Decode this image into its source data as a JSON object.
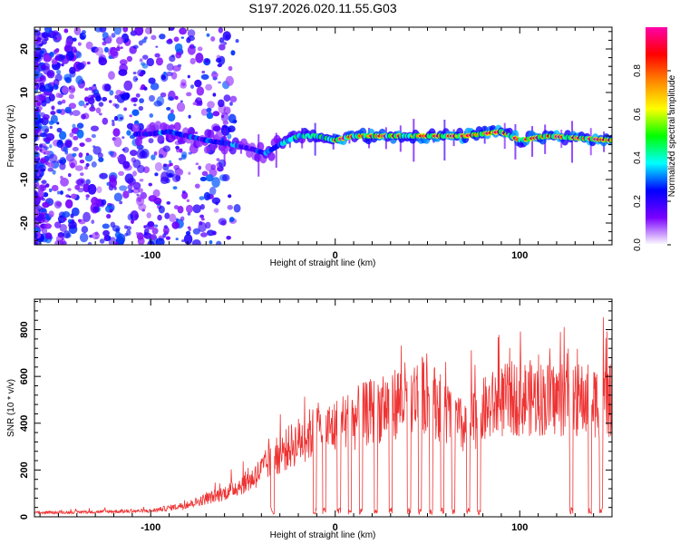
{
  "title": "S197.2026.020.11.55.G03",
  "chart_data": [
    {
      "type": "heatmap",
      "name": "spectrogram",
      "xlabel": "Height of straight line (km)",
      "ylabel": "Frequency (Hz)",
      "xlim": [
        -163,
        150
      ],
      "ylim": [
        -25,
        25
      ],
      "xticks": [
        -100,
        0,
        100
      ],
      "xtick_labels": [
        "-100",
        "0",
        "100"
      ],
      "yticks": [
        -20,
        -10,
        0,
        10,
        20
      ],
      "ytick_labels": [
        "-20",
        "-10",
        "0",
        "10",
        "20"
      ],
      "ridge_frequency_hz": [
        {
          "x": -163,
          "f": 0
        },
        {
          "x": -100,
          "f": 0.5
        },
        {
          "x": -90,
          "f": 1
        },
        {
          "x": -70,
          "f": -1
        },
        {
          "x": -55,
          "f": -2
        },
        {
          "x": -45,
          "f": -3
        },
        {
          "x": -38,
          "f": -4
        },
        {
          "x": -30,
          "f": -2
        },
        {
          "x": -20,
          "f": 0
        },
        {
          "x": -10,
          "f": 0
        },
        {
          "x": 0,
          "f": -1
        },
        {
          "x": 10,
          "f": 0
        },
        {
          "x": 40,
          "f": 0
        },
        {
          "x": 70,
          "f": 0
        },
        {
          "x": 90,
          "f": 1
        },
        {
          "x": 100,
          "f": -1
        },
        {
          "x": 115,
          "f": 0
        },
        {
          "x": 150,
          "f": -1
        }
      ],
      "colorbar": {
        "label": "Normalized spectral amplitude",
        "range": [
          0,
          1
        ],
        "ticks": [
          0.0,
          0.2,
          0.4,
          0.6,
          0.8
        ],
        "tick_labels": [
          "0.0",
          "0.2",
          "0.4",
          "0.6",
          "0.8"
        ],
        "colors": [
          "#ffffff",
          "#7a00ff",
          "#0000ff",
          "#00ffff",
          "#00ff00",
          "#ffff00",
          "#ff8800",
          "#ff0000",
          "#ff00aa"
        ]
      }
    },
    {
      "type": "line",
      "name": "snr",
      "xlabel": "Height of straight line (km)",
      "ylabel": "SNR (10 * v/v)",
      "xlim": [
        -163,
        150
      ],
      "ylim": [
        0,
        930
      ],
      "xticks": [
        -100,
        0,
        100
      ],
      "xtick_labels": [
        "-100",
        "0",
        "100"
      ],
      "yticks": [
        0,
        200,
        400,
        600,
        800
      ],
      "ytick_labels": [
        "0",
        "200",
        "400",
        "600",
        "800"
      ],
      "color": "#ee3333",
      "envelope": [
        {
          "x": -163,
          "y": 20
        },
        {
          "x": -100,
          "y": 30
        },
        {
          "x": -80,
          "y": 60
        },
        {
          "x": -60,
          "y": 120
        },
        {
          "x": -45,
          "y": 190
        },
        {
          "x": -35,
          "y": 280
        },
        {
          "x": -25,
          "y": 350
        },
        {
          "x": -15,
          "y": 410
        },
        {
          "x": 0,
          "y": 450
        },
        {
          "x": 20,
          "y": 530
        },
        {
          "x": 40,
          "y": 600
        },
        {
          "x": 50,
          "y": 620
        },
        {
          "x": 60,
          "y": 520
        },
        {
          "x": 70,
          "y": 440
        },
        {
          "x": 80,
          "y": 530
        },
        {
          "x": 90,
          "y": 580
        },
        {
          "x": 100,
          "y": 600
        },
        {
          "x": 120,
          "y": 590
        },
        {
          "x": 150,
          "y": 580
        }
      ],
      "dropouts_km": [
        -34,
        -11,
        -6,
        2,
        8,
        14,
        22,
        30,
        40,
        46,
        52,
        58,
        64,
        72,
        78,
        128,
        138,
        144
      ]
    }
  ]
}
